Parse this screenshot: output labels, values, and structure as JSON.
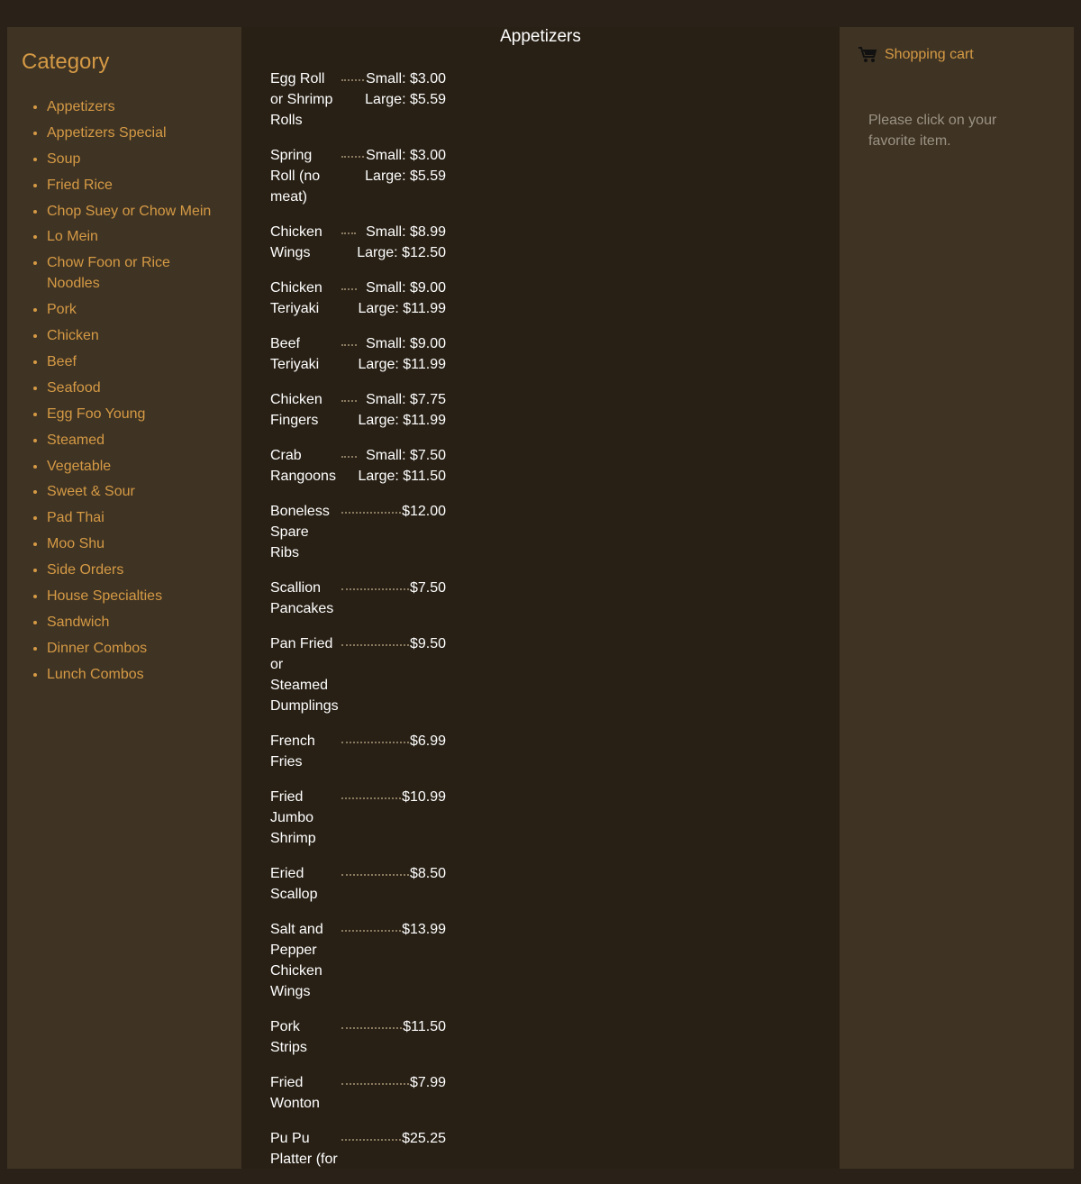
{
  "sidebar": {
    "title": "Category",
    "items": [
      "Appetizers",
      "Appetizers Special",
      "Soup",
      "Fried Rice",
      "Chop Suey or Chow Mein",
      "Lo Mein",
      "Chow Foon or Rice Noodles",
      "Pork",
      "Chicken",
      "Beef",
      "Seafood",
      "Egg Foo Young",
      "Steamed",
      "Vegetable",
      "Sweet & Sour",
      "Pad Thai",
      "Moo Shu",
      "Side Orders",
      "House Specialties",
      "Sandwich",
      "Dinner Combos",
      "Lunch Combos"
    ]
  },
  "main": {
    "title": "Appetizers",
    "items": [
      {
        "name": "Egg Roll or Shrimp Rolls",
        "price": [
          "Small: $3.00",
          "Large: $5.59"
        ]
      },
      {
        "name": "Spring Roll (no meat)",
        "price": [
          "Small: $3.00",
          "Large: $5.59"
        ]
      },
      {
        "name": "Chicken Wings",
        "price": [
          "Small: $8.99",
          "Large: $12.50"
        ]
      },
      {
        "name": "Chicken Teriyaki",
        "price": [
          "Small: $9.00",
          "Large: $11.99"
        ]
      },
      {
        "name": "Beef Teriyaki",
        "price": [
          "Small: $9.00",
          "Large: $11.99"
        ]
      },
      {
        "name": "Chicken Fingers",
        "price": [
          "Small: $7.75",
          "Large: $11.99"
        ]
      },
      {
        "name": "Crab Rangoons",
        "price": [
          "Small: $7.50",
          "Large: $11.50"
        ]
      },
      {
        "name": "Boneless Spare Ribs",
        "price": [
          "$12.00"
        ]
      },
      {
        "name": "Scallion Pancakes",
        "price": [
          "$7.50"
        ]
      },
      {
        "name": "Pan Fried or Steamed Dumplings",
        "price": [
          "$9.50"
        ]
      },
      {
        "name": "French Fries",
        "price": [
          "$6.99"
        ]
      },
      {
        "name": "Fried Jumbo Shrimp",
        "price": [
          "$10.99"
        ]
      },
      {
        "name": "Eried Scallop",
        "price": [
          "$8.50"
        ]
      },
      {
        "name": "Salt and Pepper Chicken Wings",
        "price": [
          "$13.99"
        ]
      },
      {
        "name": "Pork Strips",
        "price": [
          "$11.50"
        ]
      },
      {
        "name": "Fried Wonton",
        "price": [
          "$7.99"
        ]
      },
      {
        "name": "Pu Pu Platter (for",
        "price": [
          "$25.25"
        ]
      }
    ]
  },
  "cart": {
    "title": "Shopping cart",
    "icon": "cart-icon",
    "message": "Please click on your favorite item."
  },
  "colors": {
    "accent": "#d59a45",
    "panel": "#3f3323",
    "main_bg": "#282015"
  }
}
